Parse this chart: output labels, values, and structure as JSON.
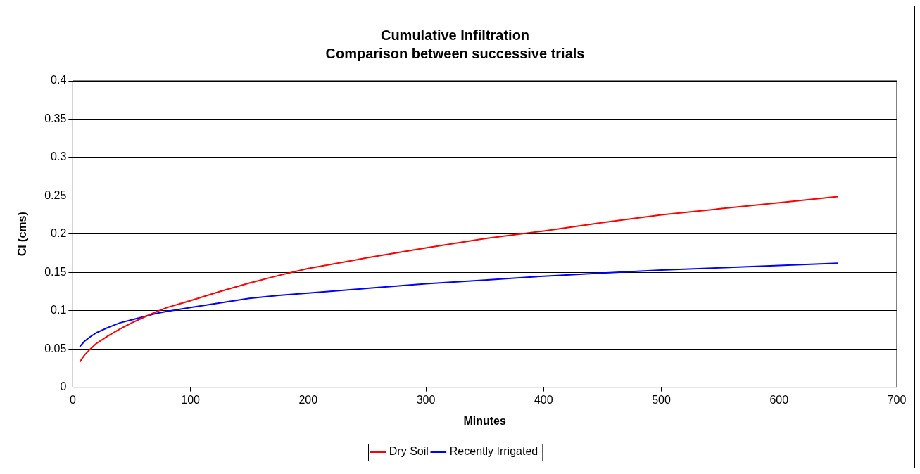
{
  "chart_data": {
    "type": "line",
    "title": "Cumulative Infiltration",
    "subtitle": "Comparison between successive trials",
    "xlabel": "Minutes",
    "ylabel": "CI (cms)",
    "xlim": [
      0,
      700
    ],
    "xticks": [
      0,
      100,
      200,
      300,
      400,
      500,
      600,
      700
    ],
    "ylim": [
      0,
      0.4
    ],
    "yticks": [
      0,
      0.05,
      0.1,
      0.15,
      0.2,
      0.25,
      0.3,
      0.35,
      0.4
    ],
    "grid": "y",
    "legend": "bottom",
    "marker": "none",
    "line_style": "solid",
    "series": [
      {
        "name": "Dry Soil",
        "color": "#ff0000",
        "x": [
          6,
          10,
          15,
          20,
          30,
          40,
          50,
          60,
          70,
          80,
          100,
          125,
          150,
          175,
          200,
          250,
          300,
          350,
          400,
          450,
          500,
          550,
          600,
          650
        ],
        "values": [
          0.033,
          0.042,
          0.05,
          0.057,
          0.067,
          0.076,
          0.084,
          0.091,
          0.098,
          0.104,
          0.113,
          0.125,
          0.136,
          0.146,
          0.155,
          0.169,
          0.182,
          0.194,
          0.204,
          0.215,
          0.225,
          0.233,
          0.241,
          0.249
        ]
      },
      {
        "name": "Recently Irrigated",
        "color": "#0000ff",
        "x": [
          6,
          10,
          15,
          20,
          30,
          40,
          50,
          60,
          70,
          80,
          100,
          125,
          150,
          175,
          200,
          250,
          300,
          350,
          400,
          450,
          500,
          550,
          600,
          650
        ],
        "values": [
          0.053,
          0.06,
          0.066,
          0.071,
          0.078,
          0.084,
          0.088,
          0.092,
          0.096,
          0.099,
          0.104,
          0.11,
          0.116,
          0.12,
          0.123,
          0.129,
          0.135,
          0.14,
          0.145,
          0.149,
          0.153,
          0.156,
          0.159,
          0.162
        ]
      }
    ]
  }
}
